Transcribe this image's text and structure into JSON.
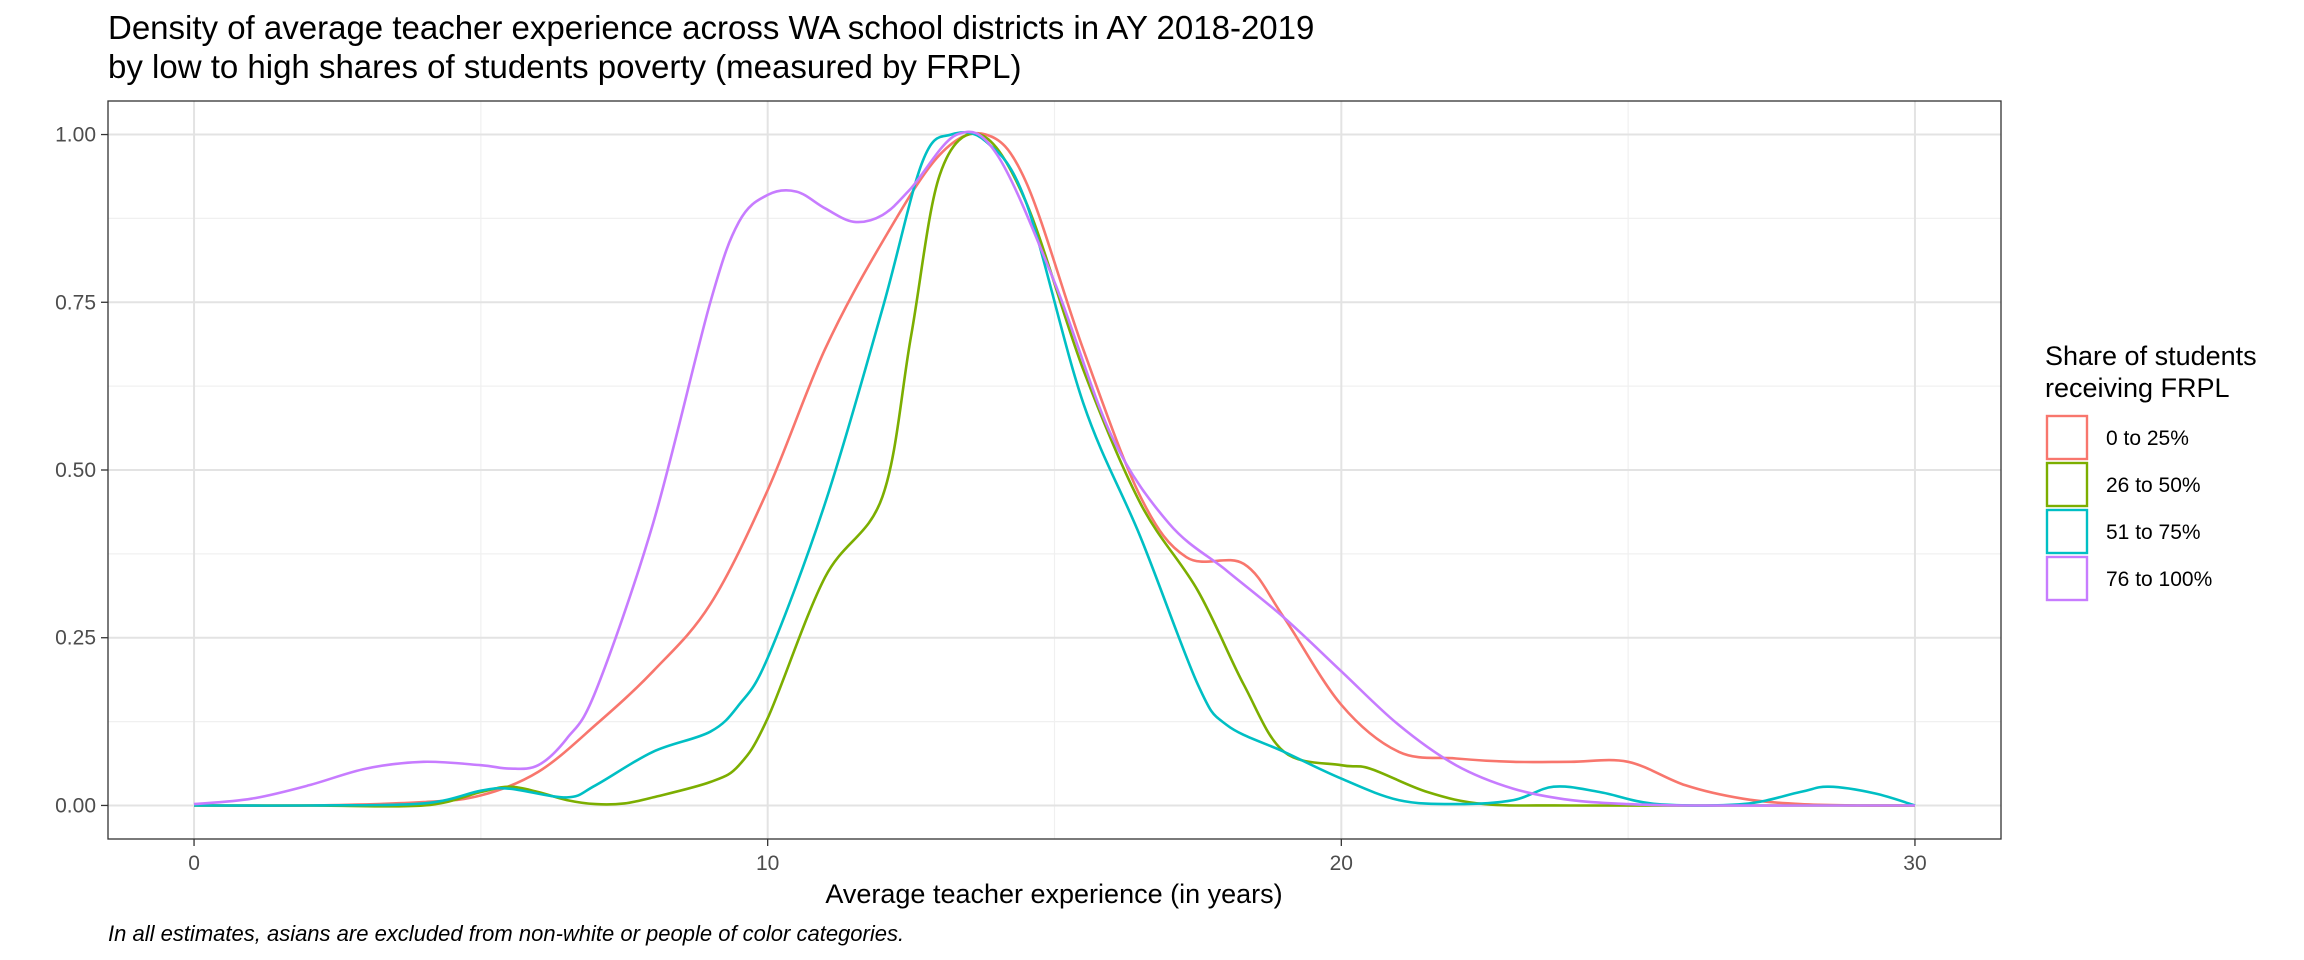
{
  "chart_data": {
    "type": "line",
    "title": "Density of average teacher experience across WA school districts in AY 2018-2019",
    "subtitle": "by low to high shares of students poverty (measured by FRPL)",
    "xlabel": "Average teacher experience (in years)",
    "ylabel": "",
    "caption": "In all estimates, asians are excluded from non-white or people of color categories.",
    "xlim": [
      -1.5,
      31.5
    ],
    "ylim": [
      -0.05,
      1.05
    ],
    "x_ticks": [
      0,
      10,
      20,
      30
    ],
    "x_tick_labels": [
      "0",
      "10",
      "20",
      "30"
    ],
    "y_ticks": [
      0,
      0.25,
      0.5,
      0.75,
      1.0
    ],
    "y_tick_labels": [
      "0.00",
      "0.25",
      "0.50",
      "0.75",
      "1.00"
    ],
    "grid": true,
    "legend": {
      "title_line1": "Share of students",
      "title_line2": "receiving FRPL",
      "position": "right"
    },
    "series": [
      {
        "name": "0 to 25%",
        "color": "#F8766D",
        "points": [
          [
            0,
            0
          ],
          [
            2,
            0
          ],
          [
            4,
            0.005
          ],
          [
            5,
            0.015
          ],
          [
            6,
            0.05
          ],
          [
            7,
            0.12
          ],
          [
            8,
            0.2
          ],
          [
            9,
            0.3
          ],
          [
            10,
            0.47
          ],
          [
            11,
            0.68
          ],
          [
            12,
            0.84
          ],
          [
            13,
            0.97
          ],
          [
            13.8,
            1.0
          ],
          [
            14.5,
            0.93
          ],
          [
            15.5,
            0.68
          ],
          [
            16.5,
            0.46
          ],
          [
            17.3,
            0.37
          ],
          [
            18.3,
            0.36
          ],
          [
            19,
            0.28
          ],
          [
            20,
            0.15
          ],
          [
            21,
            0.08
          ],
          [
            22,
            0.07
          ],
          [
            23,
            0.065
          ],
          [
            24,
            0.065
          ],
          [
            25,
            0.065
          ],
          [
            26,
            0.03
          ],
          [
            27,
            0.01
          ],
          [
            28,
            0.002
          ],
          [
            29,
            0
          ],
          [
            30,
            0
          ]
        ]
      },
      {
        "name": "26 to 50%",
        "color": "#7CAE00",
        "points": [
          [
            0,
            0
          ],
          [
            2,
            0
          ],
          [
            4,
            0
          ],
          [
            5,
            0.02
          ],
          [
            5.5,
            0.028
          ],
          [
            6,
            0.02
          ],
          [
            6.5,
            0.008
          ],
          [
            7,
            0.002
          ],
          [
            7.5,
            0.003
          ],
          [
            8,
            0.012
          ],
          [
            9,
            0.035
          ],
          [
            9.5,
            0.06
          ],
          [
            10,
            0.13
          ],
          [
            11,
            0.34
          ],
          [
            12,
            0.46
          ],
          [
            12.5,
            0.7
          ],
          [
            13,
            0.94
          ],
          [
            13.7,
            1.0
          ],
          [
            14.5,
            0.9
          ],
          [
            15.5,
            0.65
          ],
          [
            16.5,
            0.45
          ],
          [
            17.5,
            0.32
          ],
          [
            18.3,
            0.18
          ],
          [
            19,
            0.08
          ],
          [
            20,
            0.06
          ],
          [
            20.5,
            0.055
          ],
          [
            21.5,
            0.02
          ],
          [
            22.5,
            0.002
          ],
          [
            24,
            0
          ],
          [
            27,
            0
          ],
          [
            30,
            0
          ]
        ]
      },
      {
        "name": "51 to 75%",
        "color": "#00BFC4",
        "points": [
          [
            0,
            0
          ],
          [
            2,
            0
          ],
          [
            4,
            0.003
          ],
          [
            5,
            0.022
          ],
          [
            5.5,
            0.025
          ],
          [
            6.5,
            0.012
          ],
          [
            7,
            0.03
          ],
          [
            8,
            0.08
          ],
          [
            9,
            0.11
          ],
          [
            9.5,
            0.15
          ],
          [
            10,
            0.22
          ],
          [
            11,
            0.45
          ],
          [
            12,
            0.74
          ],
          [
            12.7,
            0.96
          ],
          [
            13.2,
            1.0
          ],
          [
            13.8,
            0.99
          ],
          [
            14.5,
            0.9
          ],
          [
            15.5,
            0.6
          ],
          [
            16.5,
            0.4
          ],
          [
            17.5,
            0.18
          ],
          [
            18,
            0.12
          ],
          [
            19,
            0.08
          ],
          [
            20,
            0.04
          ],
          [
            21,
            0.008
          ],
          [
            22,
            0.002
          ],
          [
            23,
            0.008
          ],
          [
            23.7,
            0.028
          ],
          [
            24.5,
            0.02
          ],
          [
            25.5,
            0.002
          ],
          [
            27,
            0.002
          ],
          [
            28,
            0.02
          ],
          [
            28.5,
            0.028
          ],
          [
            29.3,
            0.018
          ],
          [
            30,
            0
          ]
        ]
      },
      {
        "name": "76 to 100%",
        "color": "#C77CFF",
        "points": [
          [
            0,
            0.002
          ],
          [
            1,
            0.01
          ],
          [
            2,
            0.03
          ],
          [
            3,
            0.055
          ],
          [
            4,
            0.065
          ],
          [
            5,
            0.06
          ],
          [
            5.5,
            0.055
          ],
          [
            6,
            0.06
          ],
          [
            6.5,
            0.1
          ],
          [
            7,
            0.17
          ],
          [
            8,
            0.42
          ],
          [
            9,
            0.75
          ],
          [
            9.5,
            0.87
          ],
          [
            10,
            0.91
          ],
          [
            10.5,
            0.915
          ],
          [
            11,
            0.89
          ],
          [
            11.5,
            0.87
          ],
          [
            12,
            0.88
          ],
          [
            12.5,
            0.92
          ],
          [
            13.3,
            1.0
          ],
          [
            14,
            0.97
          ],
          [
            15,
            0.78
          ],
          [
            16,
            0.55
          ],
          [
            17,
            0.42
          ],
          [
            18,
            0.35
          ],
          [
            19,
            0.28
          ],
          [
            20,
            0.2
          ],
          [
            21,
            0.12
          ],
          [
            22,
            0.06
          ],
          [
            23,
            0.025
          ],
          [
            24,
            0.008
          ],
          [
            25,
            0.002
          ],
          [
            26,
            0
          ],
          [
            28,
            0
          ],
          [
            30,
            0
          ]
        ]
      }
    ]
  }
}
